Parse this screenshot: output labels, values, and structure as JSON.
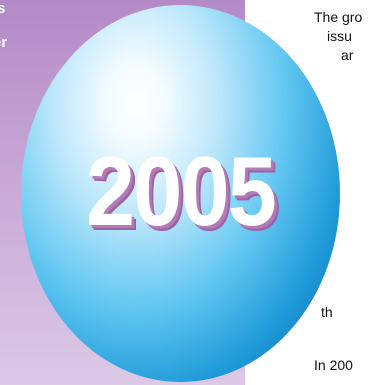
{
  "side_panel": {
    "line1": "s",
    "line2": "er"
  },
  "body_text": {
    "l1": "The gro",
    "l2": "issu",
    "l3": "ar",
    "l4": "th",
    "l5": "In 200"
  },
  "graphic": {
    "year": "2005"
  }
}
